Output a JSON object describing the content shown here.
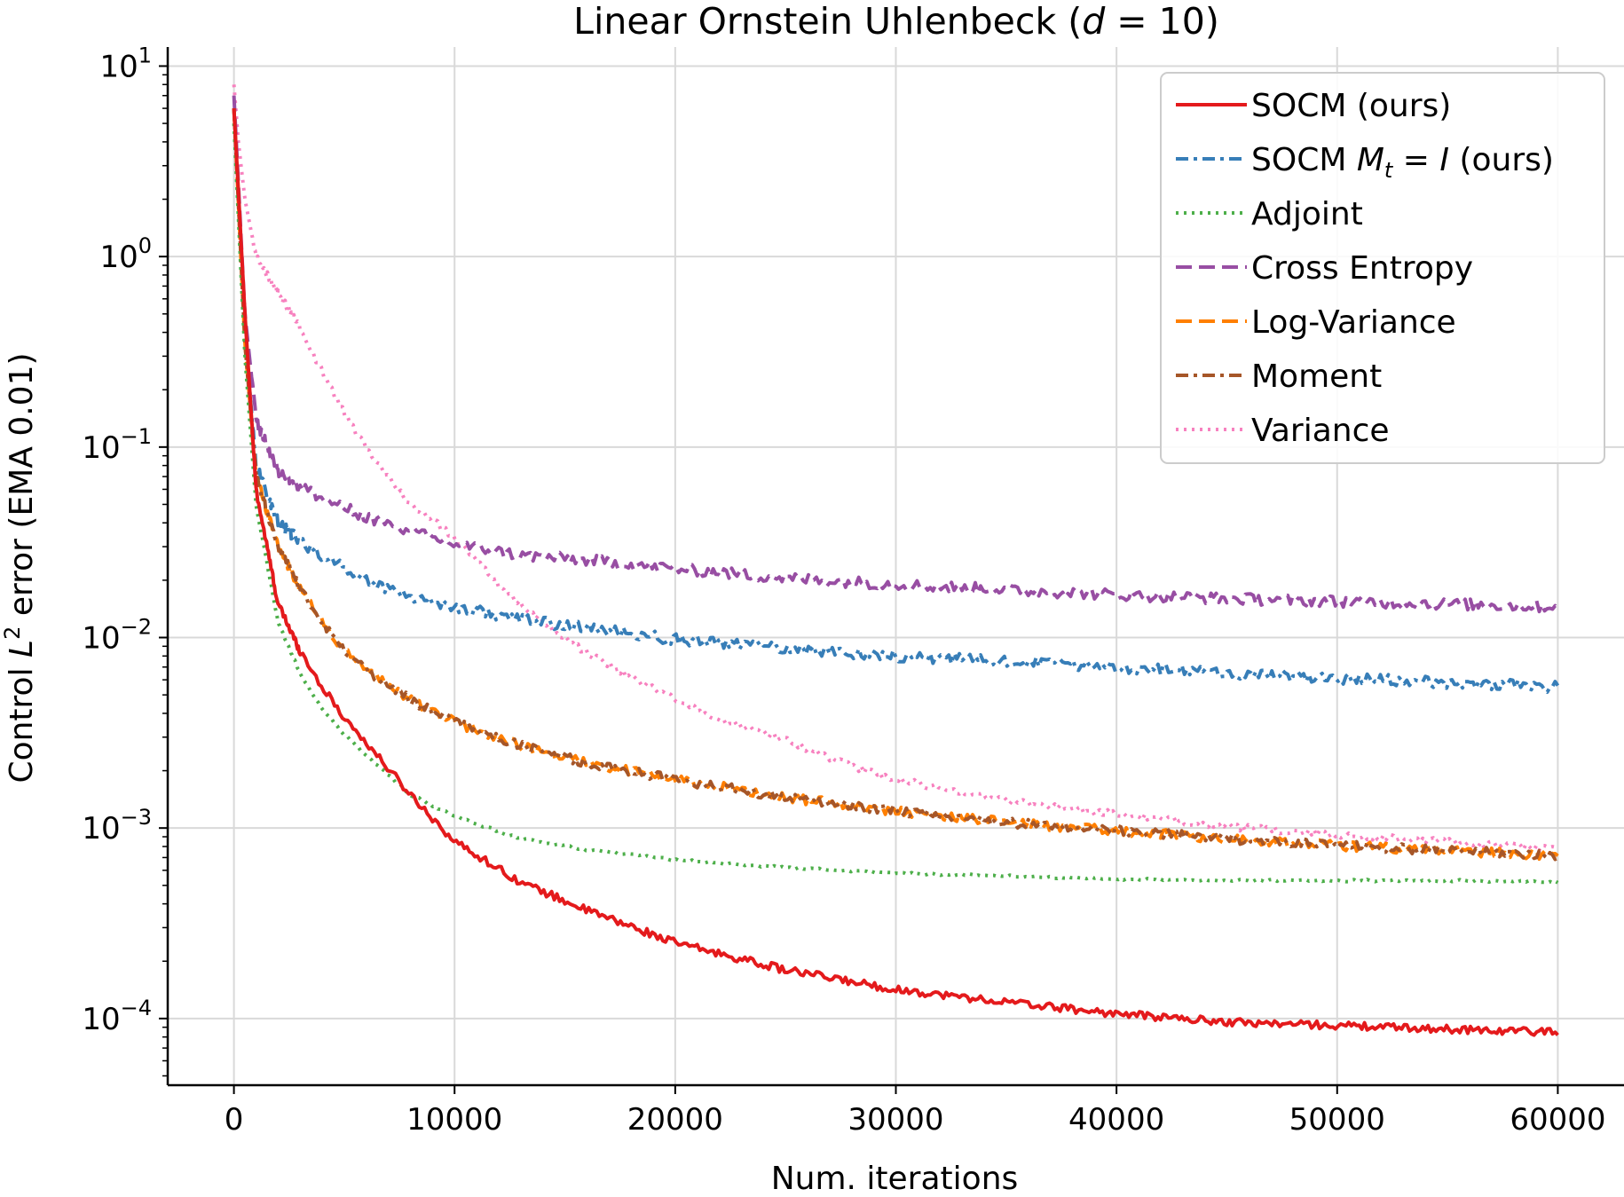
{
  "chart_data": {
    "type": "line",
    "title": "Linear Ornstein Uhlenbeck (d = 10)",
    "xlabel": "Num. iterations",
    "ylabel": "Control L² error (EMA 0.01)",
    "xlim": [
      -3000,
      63000
    ],
    "ylim_log10": [
      -4.35,
      1.1
    ],
    "yscale": "log",
    "x_ticks": [
      0,
      10000,
      20000,
      30000,
      40000,
      50000,
      60000
    ],
    "y_ticks": [
      {
        "exp": -4,
        "base": "10",
        "sup": "−4"
      },
      {
        "exp": -3,
        "base": "10",
        "sup": "−3"
      },
      {
        "exp": -2,
        "base": "10",
        "sup": "−2"
      },
      {
        "exp": -1,
        "base": "10",
        "sup": "−1"
      },
      {
        "exp": 0,
        "base": "10",
        "sup": "0"
      },
      {
        "exp": 1,
        "base": "10",
        "sup": "1"
      }
    ],
    "grid": true,
    "legend_position": "top-right",
    "series": [
      {
        "name": "SOCM (ours)",
        "color": "#e41a1c",
        "dash": "",
        "noise": 0.02,
        "x": [
          0,
          500,
          1000,
          2000,
          3000,
          4000,
          5000,
          6000,
          8000,
          10000,
          13000,
          16000,
          20000,
          25000,
          30000,
          35000,
          40000,
          45000,
          50000,
          55000,
          60000
        ],
        "y": [
          6.0,
          0.5,
          0.06,
          0.015,
          0.0085,
          0.0055,
          0.0038,
          0.0028,
          0.0015,
          0.00085,
          0.00052,
          0.00037,
          0.00025,
          0.00018,
          0.000142,
          0.000122,
          0.000106,
          9.6e-05,
          9.2e-05,
          8.8e-05,
          8.5e-05
        ]
      },
      {
        "name": "SOCM M_t = I (ours)",
        "color": "#377eb8",
        "dash": "14,6,4,6",
        "noise": 0.03,
        "x": [
          0,
          500,
          1000,
          2000,
          3000,
          4000,
          6000,
          8000,
          10000,
          13000,
          16000,
          20000,
          25000,
          30000,
          35000,
          40000,
          45000,
          50000,
          55000,
          60000
        ],
        "y": [
          6.0,
          0.4,
          0.08,
          0.04,
          0.032,
          0.027,
          0.02,
          0.0165,
          0.0145,
          0.0125,
          0.0112,
          0.0098,
          0.0088,
          0.008,
          0.0075,
          0.007,
          0.0065,
          0.0061,
          0.0058,
          0.0055
        ]
      },
      {
        "name": "Adjoint",
        "color": "#4daf4a",
        "dash": "3,6",
        "noise": 0.006,
        "x": [
          0,
          500,
          1000,
          2000,
          3000,
          4000,
          5000,
          6000,
          8000,
          10000,
          13000,
          16000,
          20000,
          25000,
          30000,
          35000,
          40000,
          45000,
          50000,
          55000,
          60000
        ],
        "y": [
          5.0,
          0.3,
          0.05,
          0.012,
          0.0065,
          0.0042,
          0.0031,
          0.0024,
          0.0015,
          0.00115,
          0.00088,
          0.00077,
          0.00068,
          0.00062,
          0.00058,
          0.00056,
          0.00054,
          0.00053,
          0.00053,
          0.00053,
          0.00052
        ]
      },
      {
        "name": "Cross Entropy",
        "color": "#984ea3",
        "dash": "18,8",
        "noise": 0.03,
        "x": [
          0,
          500,
          1000,
          2000,
          3000,
          4000,
          5000,
          6000,
          8000,
          10000,
          13000,
          16000,
          20000,
          25000,
          30000,
          35000,
          40000,
          45000,
          50000,
          55000,
          60000
        ],
        "y": [
          7.0,
          0.5,
          0.14,
          0.075,
          0.062,
          0.054,
          0.048,
          0.043,
          0.036,
          0.031,
          0.027,
          0.0255,
          0.023,
          0.0205,
          0.019,
          0.0178,
          0.0168,
          0.016,
          0.0155,
          0.015,
          0.0145
        ]
      },
      {
        "name": "Log-Variance",
        "color": "#ff7f00",
        "dash": "18,8",
        "noise": 0.025,
        "x": [
          0,
          500,
          1000,
          2000,
          3000,
          4000,
          5000,
          6000,
          8000,
          10000,
          13000,
          16000,
          20000,
          25000,
          30000,
          35000,
          40000,
          45000,
          50000,
          55000,
          60000
        ],
        "y": [
          6.0,
          0.35,
          0.07,
          0.03,
          0.018,
          0.012,
          0.0085,
          0.0068,
          0.0047,
          0.0036,
          0.0027,
          0.0022,
          0.0018,
          0.00145,
          0.00123,
          0.00107,
          0.00097,
          0.00088,
          0.00081,
          0.00076,
          0.00072
        ]
      },
      {
        "name": "Moment",
        "color": "#a65628",
        "dash": "14,6,4,6",
        "noise": 0.025,
        "x": [
          0,
          500,
          1000,
          2000,
          3000,
          4000,
          5000,
          6000,
          8000,
          10000,
          13000,
          16000,
          20000,
          25000,
          30000,
          35000,
          40000,
          45000,
          50000,
          55000,
          60000
        ],
        "y": [
          6.0,
          0.35,
          0.07,
          0.03,
          0.018,
          0.012,
          0.0085,
          0.0068,
          0.0047,
          0.0036,
          0.0027,
          0.0022,
          0.0018,
          0.00145,
          0.00123,
          0.00107,
          0.00097,
          0.00088,
          0.00081,
          0.00076,
          0.00072
        ]
      },
      {
        "name": "Variance",
        "color": "#f781bf",
        "dash": "3,6",
        "noise": 0.018,
        "x": [
          0,
          200,
          500,
          1000,
          2000,
          3000,
          4000,
          5000,
          6000,
          7000,
          8000,
          9000,
          10000,
          11000,
          12000,
          13000,
          14000,
          16000,
          18000,
          20000,
          22000,
          25000,
          28000,
          30000,
          35000,
          40000,
          45000,
          50000,
          55000,
          60000
        ],
        "y": [
          8.0,
          4.0,
          2.0,
          1.0,
          0.65,
          0.42,
          0.25,
          0.15,
          0.1,
          0.07,
          0.05,
          0.042,
          0.033,
          0.025,
          0.019,
          0.015,
          0.012,
          0.0083,
          0.0062,
          0.0047,
          0.0037,
          0.0029,
          0.0021,
          0.0018,
          0.0014,
          0.00118,
          0.00102,
          0.00092,
          0.00085,
          0.00078
        ]
      }
    ]
  },
  "legend": {
    "items": [
      {
        "label": "SOCM (ours)"
      },
      {
        "label": "SOCM ",
        "math": "M",
        "sub": "t",
        "rest": " = ",
        "math2": "I",
        "tail": " (ours)"
      },
      {
        "label": "Adjoint"
      },
      {
        "label": "Cross Entropy"
      },
      {
        "label": "Log-Variance"
      },
      {
        "label": "Moment"
      },
      {
        "label": "Variance"
      }
    ]
  },
  "title_parts": {
    "prefix": "Linear Ornstein Uhlenbeck (",
    "var": "d",
    "suffix": " = 10)"
  },
  "ylabel_parts": {
    "prefix": "Control ",
    "var": "L",
    "sup": "2",
    "suffix": " error (EMA 0.01)"
  }
}
